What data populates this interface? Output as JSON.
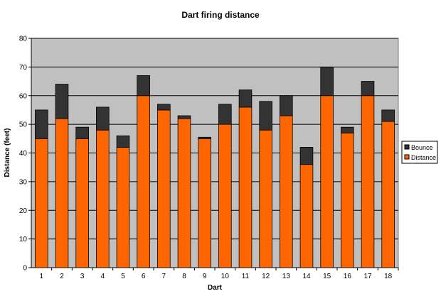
{
  "chart_data": {
    "type": "bar",
    "stacked": true,
    "title": "Dart firing distance",
    "xlabel": "Dart",
    "ylabel": "Distance (feet)",
    "ylim": [
      0,
      80
    ],
    "yticks": [
      0,
      10,
      20,
      30,
      40,
      50,
      60,
      70,
      80
    ],
    "grid": true,
    "legend_position": "right",
    "categories": [
      "1",
      "2",
      "3",
      "4",
      "5",
      "6",
      "7",
      "8",
      "9",
      "10",
      "11",
      "12",
      "13",
      "14",
      "15",
      "16",
      "17",
      "18"
    ],
    "series": [
      {
        "name": "Distance",
        "color": "#ff6600",
        "values": [
          45,
          52,
          45,
          48,
          42,
          60,
          55,
          52,
          45,
          50,
          56,
          48,
          53,
          36,
          60,
          47,
          60,
          51
        ]
      },
      {
        "name": "Bounce",
        "color": "#333333",
        "values": [
          10,
          12,
          4,
          8,
          4,
          7,
          2,
          1,
          0.5,
          7,
          6,
          10,
          7,
          6,
          10,
          2,
          5,
          4
        ]
      }
    ],
    "plot_background": "#c0c0c0"
  }
}
